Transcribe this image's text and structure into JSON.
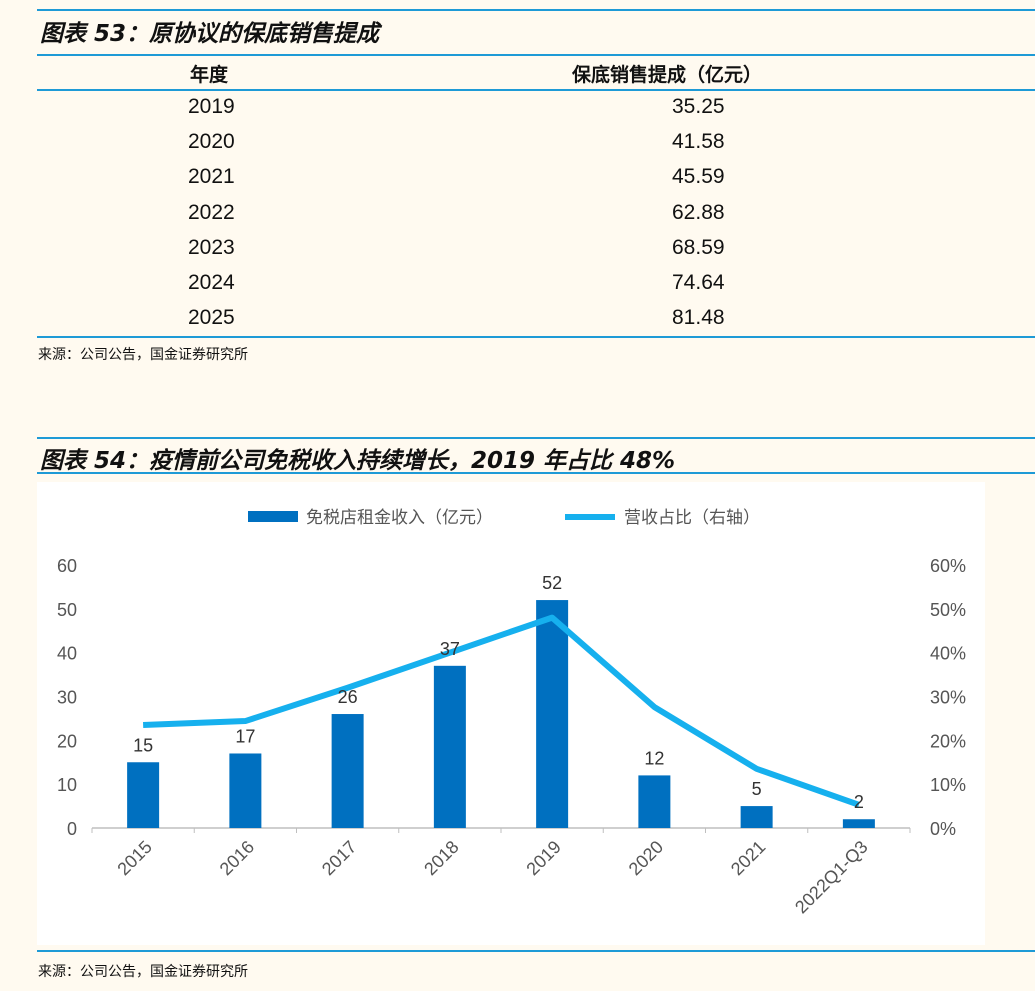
{
  "table53": {
    "title": "图表 53：原协议的保底销售提成",
    "headers": [
      "年度",
      "保底销售提成（亿元）"
    ],
    "rows": [
      [
        "2019",
        "35.25"
      ],
      [
        "2020",
        "41.58"
      ],
      [
        "2021",
        "45.59"
      ],
      [
        "2022",
        "62.88"
      ],
      [
        "2023",
        "68.59"
      ],
      [
        "2024",
        "74.64"
      ],
      [
        "2025",
        "81.48"
      ]
    ],
    "source": "来源：公司公告，国金证券研究所"
  },
  "figure54": {
    "title": "图表 54：疫情前公司免税收入持续增长，2019 年占比 48%",
    "source": "来源：公司公告，国金证券研究所"
  },
  "colors": {
    "rule": "#1e9ad6",
    "bar": "#0070c0",
    "line": "#16b0ee",
    "background": "#fffaf0"
  },
  "chart_data": {
    "type": "bar+line",
    "categories": [
      "2015",
      "2016",
      "2017",
      "2018",
      "2019",
      "2020",
      "2021",
      "2022Q1-Q3"
    ],
    "series": [
      {
        "name": "免税店租金收入（亿元）",
        "type": "bar",
        "axis": "left",
        "values": [
          15,
          17,
          26,
          37,
          52,
          12,
          5,
          2
        ],
        "data_labels": [
          "15",
          "17",
          "26",
          "37",
          "52",
          "12",
          "5",
          "2"
        ]
      },
      {
        "name": "营收占比（右轴）",
        "type": "line",
        "axis": "right",
        "values": [
          23.5,
          24.4,
          32,
          40,
          48,
          27.6,
          13.5,
          5.3
        ]
      }
    ],
    "y_left": {
      "range": [
        0,
        60
      ],
      "ticks": [
        "0",
        "10",
        "20",
        "30",
        "40",
        "50",
        "60"
      ]
    },
    "y_right": {
      "range": [
        0,
        60
      ],
      "unit": "%",
      "ticks": [
        "0%",
        "10%",
        "20%",
        "30%",
        "40%",
        "50%",
        "60%"
      ]
    },
    "legend": "top",
    "grid": false
  }
}
